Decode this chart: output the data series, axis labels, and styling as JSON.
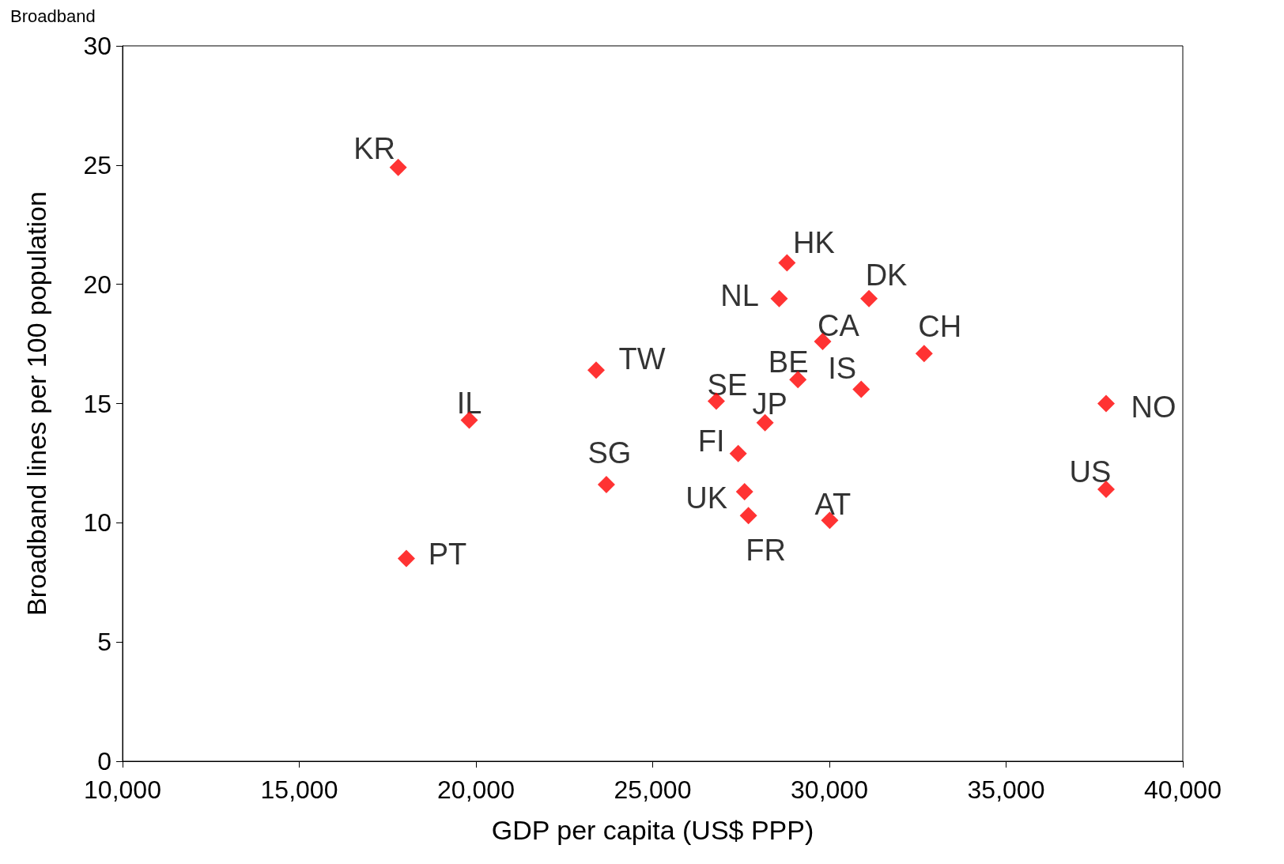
{
  "chart_data": {
    "type": "scatter",
    "title": "Broadband",
    "xlabel": "GDP per capita (US$ PPP)",
    "ylabel": "Broadband lines per 100 population",
    "x": [
      17800,
      18030,
      19810,
      23690,
      23400,
      26800,
      27420,
      27600,
      27710,
      28180,
      28580,
      28800,
      29110,
      29810,
      30010,
      30900,
      31120,
      32680,
      37830,
      37830
    ],
    "values": [
      24.9,
      8.5,
      14.3,
      11.6,
      16.4,
      15.1,
      12.9,
      11.3,
      10.3,
      14.2,
      19.4,
      20.9,
      16.0,
      17.6,
      10.1,
      15.6,
      19.4,
      17.1,
      15.0,
      11.4
    ],
    "color": "#ff0000",
    "marker": "diamond",
    "grid": false,
    "xlim": [
      10000,
      40000
    ],
    "xticks": [
      {
        "value": 10000,
        "label": "10,000"
      },
      {
        "value": 15000,
        "label": "15,000"
      },
      {
        "value": 20000,
        "label": "20,000"
      },
      {
        "value": 25000,
        "label": "25,000"
      },
      {
        "value": 30000,
        "label": "30,000"
      },
      {
        "value": 35000,
        "label": "35,000"
      },
      {
        "value": 40000,
        "label": "40,000"
      }
    ],
    "ylim": [
      0,
      30
    ],
    "yticks": [
      0,
      5,
      10,
      15,
      20,
      25,
      30
    ],
    "annotations": [
      {
        "text": "KR",
        "x": 17800,
        "y": 24.9
      },
      {
        "text": "PT",
        "x": 18030,
        "y": 8.5
      },
      {
        "text": "IL",
        "x": 19810,
        "y": 14.3
      },
      {
        "text": "SG",
        "x": 23690,
        "y": 11.6
      },
      {
        "text": "TW",
        "x": 23400,
        "y": 16.4
      },
      {
        "text": "SE",
        "x": 26800,
        "y": 15.1
      },
      {
        "text": "FI",
        "x": 27420,
        "y": 12.9
      },
      {
        "text": "UK",
        "x": 27600,
        "y": 11.3
      },
      {
        "text": "FR",
        "x": 27710,
        "y": 10.3
      },
      {
        "text": "JP",
        "x": 28180,
        "y": 14.2
      },
      {
        "text": "NL",
        "x": 28580,
        "y": 19.4
      },
      {
        "text": "HK",
        "x": 28800,
        "y": 20.9
      },
      {
        "text": "BE",
        "x": 29110,
        "y": 16.0
      },
      {
        "text": "CA",
        "x": 29810,
        "y": 17.6
      },
      {
        "text": "AT",
        "x": 30010,
        "y": 10.1
      },
      {
        "text": "IS",
        "x": 30900,
        "y": 15.6
      },
      {
        "text": "DK",
        "x": 31120,
        "y": 19.4
      },
      {
        "text": "CH",
        "x": 32680,
        "y": 17.1
      },
      {
        "text": "NO",
        "x": 37830,
        "y": 15.0
      },
      {
        "text": "US",
        "x": 37830,
        "y": 11.4
      }
    ]
  }
}
